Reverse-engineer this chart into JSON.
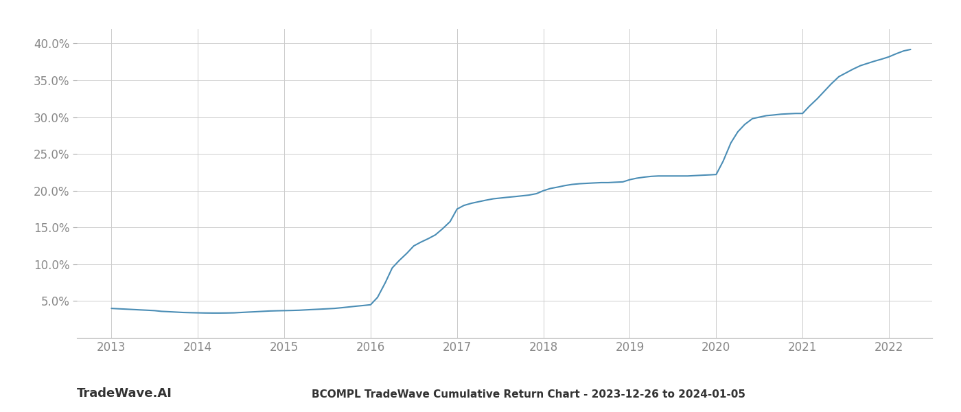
{
  "title": "BCOMPL TradeWave Cumulative Return Chart - 2023-12-26 to 2024-01-05",
  "watermark": "TradeWave.AI",
  "line_color": "#4a8db5",
  "background_color": "#ffffff",
  "grid_color": "#cccccc",
  "x_years": [
    2013,
    2014,
    2015,
    2016,
    2017,
    2018,
    2019,
    2020,
    2021,
    2022
  ],
  "x_data": [
    2013.0,
    2013.08,
    2013.17,
    2013.25,
    2013.33,
    2013.42,
    2013.5,
    2013.58,
    2013.67,
    2013.75,
    2013.83,
    2013.92,
    2014.0,
    2014.08,
    2014.17,
    2014.25,
    2014.33,
    2014.42,
    2014.5,
    2014.58,
    2014.67,
    2014.75,
    2014.83,
    2014.92,
    2015.0,
    2015.08,
    2015.17,
    2015.25,
    2015.33,
    2015.42,
    2015.5,
    2015.58,
    2015.67,
    2015.75,
    2015.83,
    2015.92,
    2016.0,
    2016.08,
    2016.17,
    2016.25,
    2016.33,
    2016.42,
    2016.5,
    2016.58,
    2016.67,
    2016.75,
    2016.83,
    2016.92,
    2017.0,
    2017.08,
    2017.17,
    2017.25,
    2017.33,
    2017.42,
    2017.5,
    2017.58,
    2017.67,
    2017.75,
    2017.83,
    2017.92,
    2018.0,
    2018.08,
    2018.17,
    2018.25,
    2018.33,
    2018.42,
    2018.5,
    2018.58,
    2018.67,
    2018.75,
    2018.83,
    2018.92,
    2019.0,
    2019.08,
    2019.17,
    2019.25,
    2019.33,
    2019.42,
    2019.5,
    2019.58,
    2019.67,
    2019.75,
    2019.83,
    2019.92,
    2020.0,
    2020.08,
    2020.17,
    2020.25,
    2020.33,
    2020.42,
    2020.5,
    2020.58,
    2020.67,
    2020.75,
    2020.83,
    2020.92,
    2021.0,
    2021.08,
    2021.17,
    2021.25,
    2021.33,
    2021.42,
    2021.5,
    2021.58,
    2021.67,
    2021.75,
    2021.83,
    2021.92,
    2022.0,
    2022.08,
    2022.17,
    2022.25
  ],
  "y_data": [
    4.0,
    3.95,
    3.9,
    3.85,
    3.8,
    3.75,
    3.7,
    3.6,
    3.55,
    3.5,
    3.45,
    3.42,
    3.4,
    3.38,
    3.37,
    3.37,
    3.38,
    3.4,
    3.45,
    3.5,
    3.55,
    3.6,
    3.65,
    3.68,
    3.7,
    3.72,
    3.75,
    3.8,
    3.85,
    3.9,
    3.95,
    4.0,
    4.1,
    4.2,
    4.3,
    4.4,
    4.5,
    5.5,
    7.5,
    9.5,
    10.5,
    11.5,
    12.5,
    13.0,
    13.5,
    14.0,
    14.8,
    15.8,
    17.5,
    18.0,
    18.3,
    18.5,
    18.7,
    18.9,
    19.0,
    19.1,
    19.2,
    19.3,
    19.4,
    19.6,
    20.0,
    20.3,
    20.5,
    20.7,
    20.85,
    20.95,
    21.0,
    21.05,
    21.1,
    21.1,
    21.15,
    21.2,
    21.5,
    21.7,
    21.85,
    21.95,
    22.0,
    22.0,
    22.0,
    22.0,
    22.0,
    22.05,
    22.1,
    22.15,
    22.2,
    24.0,
    26.5,
    28.0,
    29.0,
    29.8,
    30.0,
    30.2,
    30.3,
    30.4,
    30.45,
    30.5,
    30.5,
    31.5,
    32.5,
    33.5,
    34.5,
    35.5,
    36.0,
    36.5,
    37.0,
    37.3,
    37.6,
    37.9,
    38.2,
    38.6,
    39.0,
    39.2
  ],
  "ylim": [
    0,
    42
  ],
  "yticks": [
    5.0,
    10.0,
    15.0,
    20.0,
    25.0,
    30.0,
    35.0,
    40.0
  ],
  "xlim": [
    2012.6,
    2022.5
  ],
  "title_fontsize": 11,
  "tick_fontsize": 12,
  "watermark_fontsize": 13,
  "axis_label_color": "#888888",
  "title_color": "#333333"
}
